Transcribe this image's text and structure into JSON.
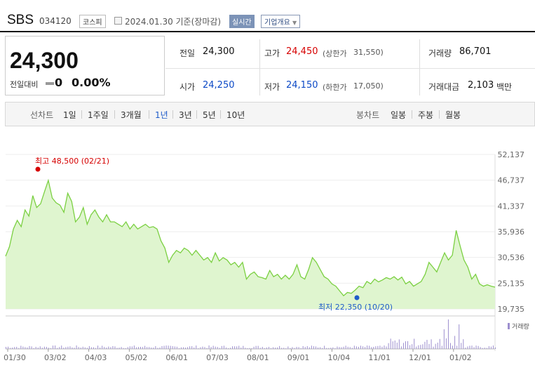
{
  "header": {
    "name": "SBS",
    "code": "034120",
    "market": "코스피",
    "date": "2024.01.30 기준(장마감)",
    "live_label": "실시간",
    "overview_label": "기업개요"
  },
  "price_box": {
    "price": "24,300",
    "change_label": "전일대비",
    "change_value": "0",
    "change_pct": "0.00%"
  },
  "info": {
    "prev_label": "전일",
    "prev_value": "24,300",
    "high_label": "고가",
    "high_value": "24,450",
    "upper_limit_label": "(상한가",
    "upper_limit_value": "31,550)",
    "volume_label": "거래량",
    "volume_value": "86,701",
    "open_label": "시가",
    "open_value": "24,250",
    "low_label": "저가",
    "low_value": "24,150",
    "lower_limit_label": "(하한가",
    "lower_limit_value": "17,050)",
    "amount_label": "거래대금",
    "amount_value": "2,103",
    "amount_unit": "백만"
  },
  "tabs": {
    "line_label": "선차트",
    "line_items": [
      "1일",
      "1주일",
      "3개월",
      "1년",
      "3년",
      "5년",
      "10년"
    ],
    "active": "1년",
    "candle_label": "봉차트",
    "candle_items": [
      "일봉",
      "주봉",
      "월봉"
    ]
  },
  "colors": {
    "up": "#d60000",
    "down": "#0c49c6",
    "line": "#7bd042",
    "area": "#dff5cf",
    "volume": "#9d8fcf"
  },
  "chart_data": {
    "type": "area",
    "title": "",
    "y_ticks": [
      "52,137",
      "46,737",
      "41,337",
      "35,936",
      "30,536",
      "25,135",
      "19,735"
    ],
    "ylim": [
      19735,
      52137
    ],
    "x_ticks": [
      "01/30",
      "03/02",
      "04/03",
      "05/02",
      "06/01",
      "07/03",
      "08/01",
      "09/01",
      "10/04",
      "11/01",
      "12/01",
      "01/02"
    ],
    "high_annotation": "최고 48,500 (02/21)",
    "low_annotation": "최저 22,350 (10/20)",
    "volume_legend": "거래량",
    "series": [
      {
        "values": [
          30800,
          32800,
          36500,
          38300,
          37000,
          40500,
          39200,
          43500,
          41000,
          41800,
          44300,
          46700,
          43000,
          42000,
          41500,
          40000,
          44000,
          42300,
          38000,
          39000,
          41000,
          37500,
          39500,
          40500,
          39000,
          38000,
          39500,
          38000,
          38000,
          37500,
          37000,
          38000,
          36500,
          37500,
          36500,
          37000,
          37500,
          36800,
          37000,
          36500,
          34000,
          32500,
          29500,
          31000,
          32000,
          31500,
          32500,
          32000,
          31000,
          32000,
          31000,
          30000,
          30500,
          29500,
          31500,
          29800,
          30500,
          30000,
          29000,
          29500,
          28500,
          29500,
          26000,
          27000,
          27500,
          26500,
          26300,
          26000,
          27800,
          26500,
          27000,
          26000,
          26800,
          26000,
          27000,
          29000,
          26500,
          26000,
          28000,
          30500,
          29500,
          28000,
          26500,
          26000,
          25000,
          24500,
          23500,
          22500,
          23200,
          23000,
          23700,
          24500,
          24200,
          25500,
          25000,
          26000,
          25400,
          25800,
          26300,
          26000,
          26500,
          25800,
          26400,
          25000,
          25500,
          24500,
          25000,
          25500,
          27000,
          29500,
          28500,
          27500,
          29500,
          31500,
          30000,
          31000,
          36200,
          33000,
          30000,
          28500,
          26000,
          27000,
          25000,
          24500,
          24800,
          24500,
          24300
        ]
      }
    ]
  }
}
